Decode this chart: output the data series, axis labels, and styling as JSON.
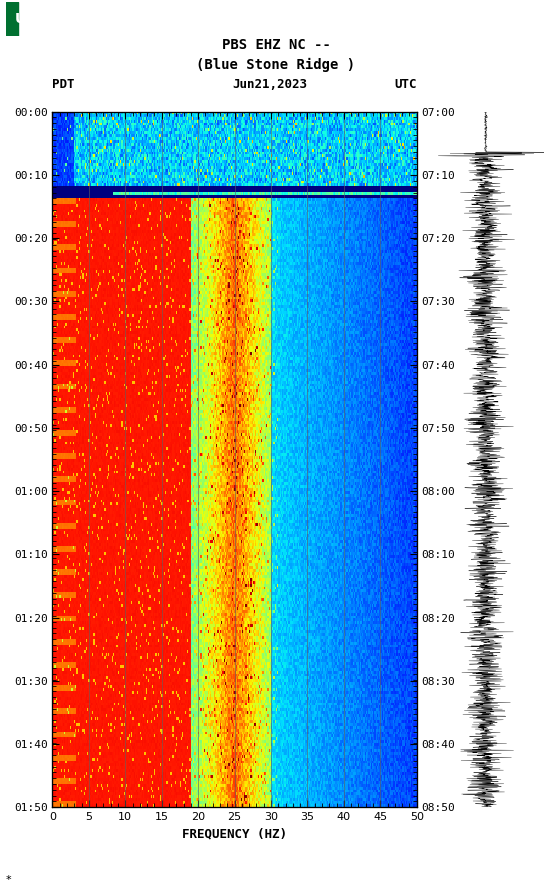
{
  "title_line1": "PBS EHZ NC --",
  "title_line2": "(Blue Stone Ridge )",
  "left_label": "PDT",
  "date_label": "Jun21,2023",
  "right_label": "UTC",
  "left_times": [
    "00:00",
    "00:10",
    "00:20",
    "00:30",
    "00:40",
    "00:50",
    "01:00",
    "01:10",
    "01:20",
    "01:30",
    "01:40",
    "01:50"
  ],
  "right_times": [
    "07:00",
    "07:10",
    "07:20",
    "07:30",
    "07:40",
    "07:50",
    "08:00",
    "08:10",
    "08:20",
    "08:30",
    "08:40",
    "08:50"
  ],
  "freq_min": 0,
  "freq_max": 50,
  "freq_ticks": [
    0,
    5,
    10,
    15,
    20,
    25,
    30,
    35,
    40,
    45,
    50
  ],
  "freq_label": "FREQUENCY (HZ)",
  "n_time": 240,
  "n_freq": 300,
  "background_color": "#ffffff",
  "usgs_green": "#007030",
  "vertical_grid_color": "#606060",
  "vertical_grid_freqs": [
    5,
    10,
    15,
    20,
    25,
    30,
    35,
    40,
    45
  ]
}
